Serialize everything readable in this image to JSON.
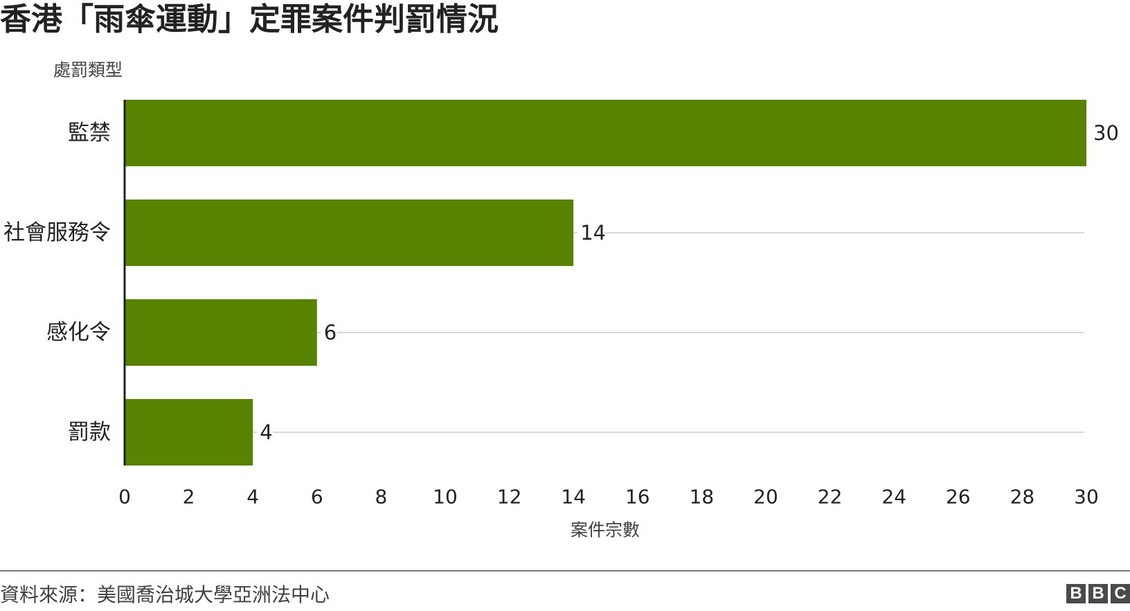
{
  "chart_data": {
    "type": "bar",
    "orientation": "horizontal",
    "title": "香港「雨傘運動」定罪案件判罰情況",
    "ylabel": "處罰類型",
    "xlabel": "案件宗數",
    "categories": [
      "監禁",
      "社會服務令",
      "感化令",
      "罰款"
    ],
    "values": [
      30,
      14,
      6,
      4
    ],
    "data_labels": [
      "30",
      "14",
      "6",
      "4"
    ],
    "xlim": [
      0,
      30
    ],
    "xticks": [
      "0",
      "2",
      "4",
      "6",
      "8",
      "10",
      "12",
      "14",
      "16",
      "18",
      "20",
      "22",
      "24",
      "26",
      "28",
      "30"
    ],
    "bar_color": "#588300",
    "grid": true,
    "legend": "none"
  },
  "footer": {
    "source": "資料來源：美國喬治城大學亞洲法中心",
    "logo_letters": [
      "B",
      "B",
      "C"
    ]
  }
}
